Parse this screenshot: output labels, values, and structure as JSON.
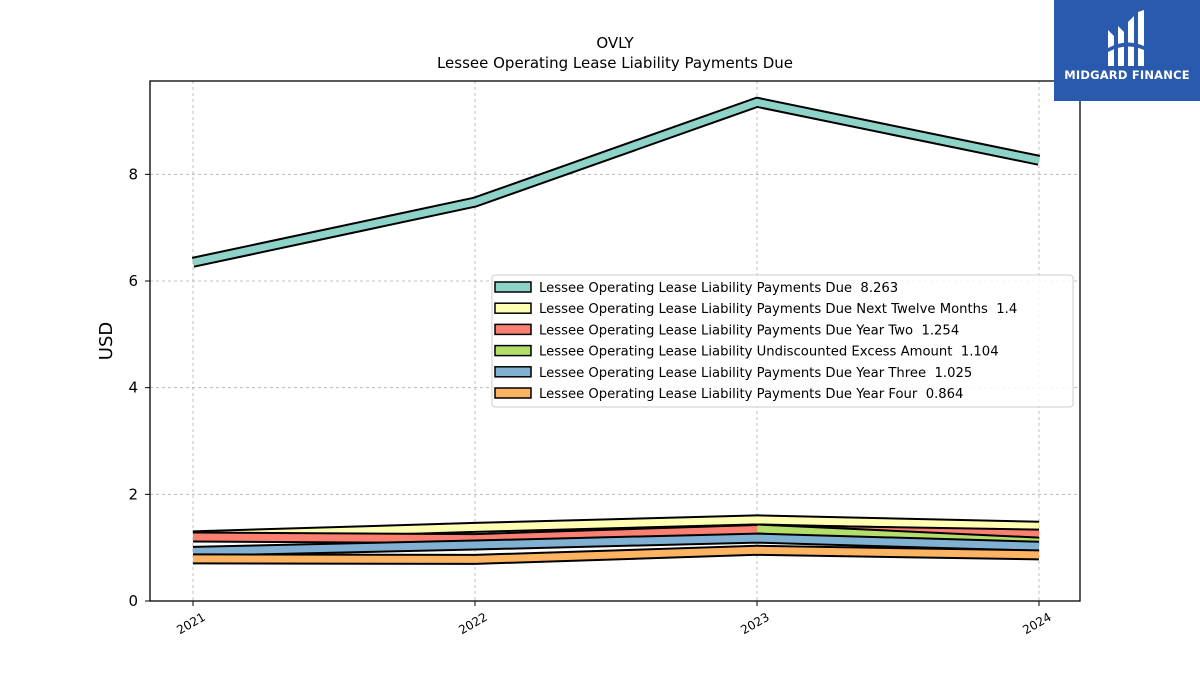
{
  "chart_data": {
    "type": "line",
    "title": "OVLY",
    "subtitle": "Lessee Operating Lease Liability Payments Due",
    "ylabel": "USD",
    "xlabel": "",
    "categories": [
      "2021",
      "2022",
      "2023",
      "2024"
    ],
    "yticks": [
      "0",
      "2",
      "4",
      "6",
      "8"
    ],
    "ylim": [
      0,
      9.75
    ],
    "grid": true,
    "legend_position": "center-right",
    "series": [
      {
        "name": "Lessee Operating Lease Liability Payments Due",
        "legend_label": "Lessee Operating Lease Liability Payments Due  8.263",
        "color": "#8dd3c7",
        "values": [
          6.35,
          7.48,
          9.35,
          8.263
        ]
      },
      {
        "name": "Lessee Operating Lease Liability Payments Due Next Twelve Months",
        "legend_label": "Lessee Operating Lease Liability Payments Due Next Twelve Months  1.4",
        "color": "#ffffb3",
        "values": [
          1.22,
          1.38,
          1.52,
          1.4
        ]
      },
      {
        "name": "Lessee Operating Lease Liability Payments Due Year Two",
        "legend_label": "Lessee Operating Lease Liability Payments Due Year Two  1.254",
        "color": "#fb8072",
        "values": [
          1.2,
          1.17,
          1.34,
          1.254
        ]
      },
      {
        "name": "Lessee Operating Lease Liability Undiscounted Excess Amount",
        "legend_label": "Lessee Operating Lease Liability Undiscounted Excess Amount  1.104",
        "color": "#b3de69",
        "values": [
          null,
          null,
          1.35,
          1.104
        ]
      },
      {
        "name": "Lessee Operating Lease Liability Payments Due Year Three",
        "legend_label": "Lessee Operating Lease Liability Payments Due Year Three  1.025",
        "color": "#80b1d3",
        "values": [
          0.93,
          1.05,
          1.18,
          1.025
        ]
      },
      {
        "name": "Lessee Operating Lease Liability Payments Due Year Four",
        "legend_label": "Lessee Operating Lease Liability Payments Due Year Four  0.864",
        "color": "#fdb462",
        "values": [
          0.79,
          0.78,
          0.95,
          0.864
        ]
      }
    ]
  },
  "logo": {
    "text": "MIDGARD FINANCE",
    "background": "#2a5aad"
  }
}
